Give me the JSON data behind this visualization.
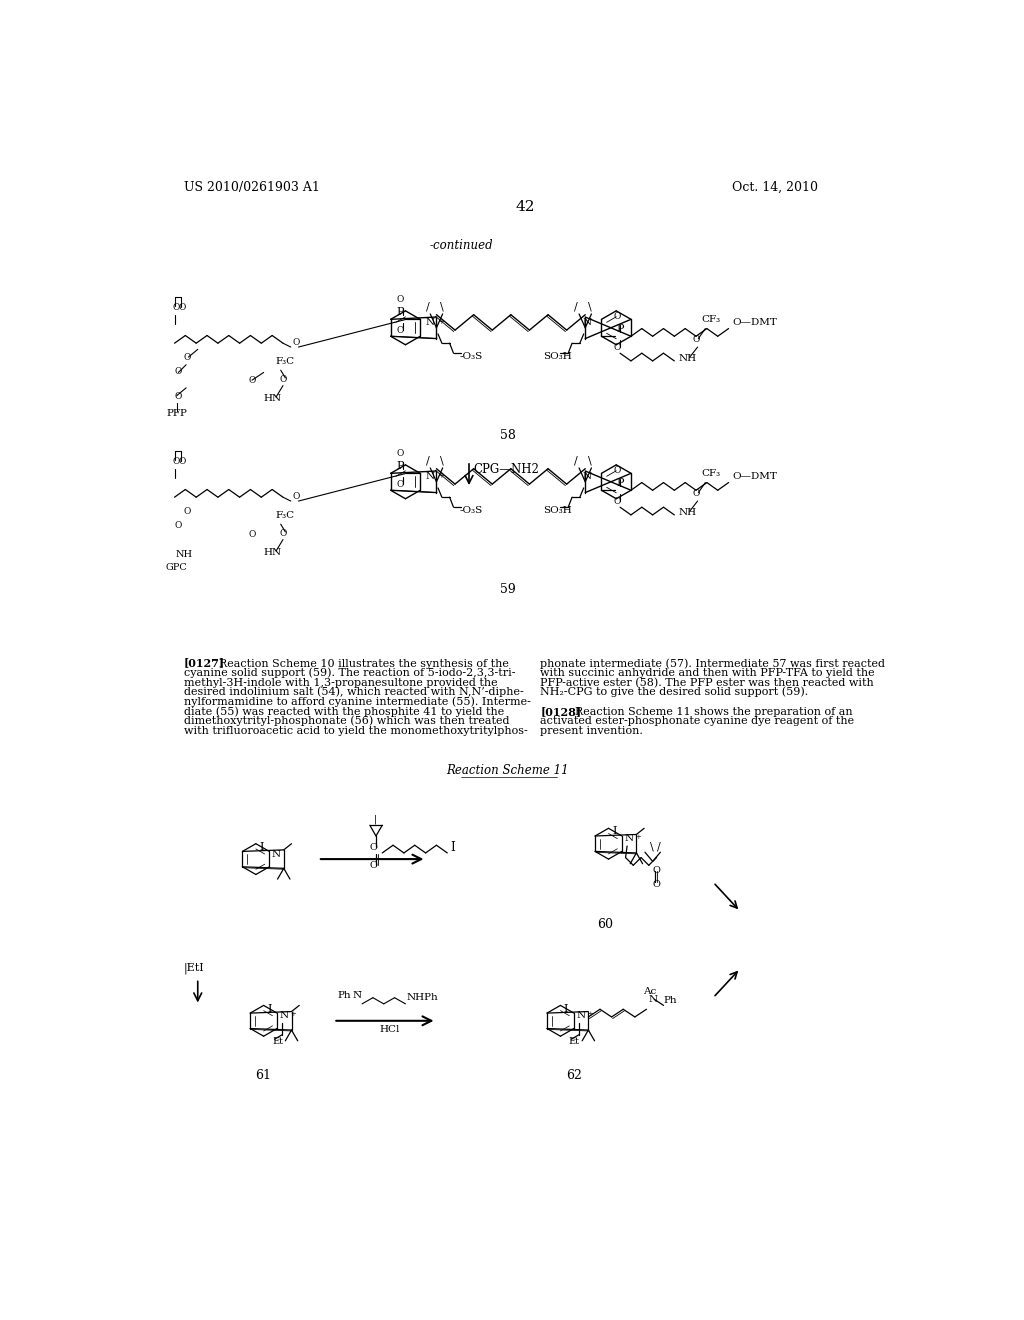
{
  "page_header_left": "US 2010/0261903 A1",
  "page_header_right": "Oct. 14, 2010",
  "page_number": "42",
  "continued_label": "-continued",
  "compound_58_label": "58",
  "compound_59_label": "59",
  "compound_60_label": "60",
  "compound_61_label": "61",
  "compound_62_label": "62",
  "reaction_scheme_label": "Reaction Scheme 11",
  "cpg_arrow_label": "CPG—NH2",
  "etI_label": "EtI",
  "background_color": "#ffffff",
  "text_color": "#000000",
  "font_size_header": 9,
  "font_size_body": 8.0,
  "font_size_small": 7,
  "font_size_label": 9,
  "lines_127_left": [
    "[0127]   Reaction Scheme 10 illustrates the synthesis of the",
    "cyanine solid support (59). The reaction of 5-iodo-2,3,3-tri-",
    "methyl-3H-indole with 1,3-propanesultone provided the",
    "desired indolinium salt (54), which reacted with N,N’-diphe-",
    "nylformamidine to afford cyanine intermediate (55). Interme-",
    "diate (55) was reacted with the phosphite 41 to yield the",
    "dimethoxytrityl-phosphonate (56) which was then treated",
    "with trifluoroacetic acid to yield the monomethoxytritylphos-"
  ],
  "lines_127_right": [
    "phonate intermediate (57). Intermediate 57 was first reacted",
    "with succinic anhydride and then with PFP-TFA to yield the",
    "PFP-active ester (58). The PFP ester was then reacted with",
    "NH₂-CPG to give the desired solid support (59)."
  ],
  "lines_128_right": [
    "[0128]   Reaction Scheme 11 shows the preparation of an",
    "activated ester-phosphonate cyanine dye reagent of the",
    "present invention."
  ]
}
